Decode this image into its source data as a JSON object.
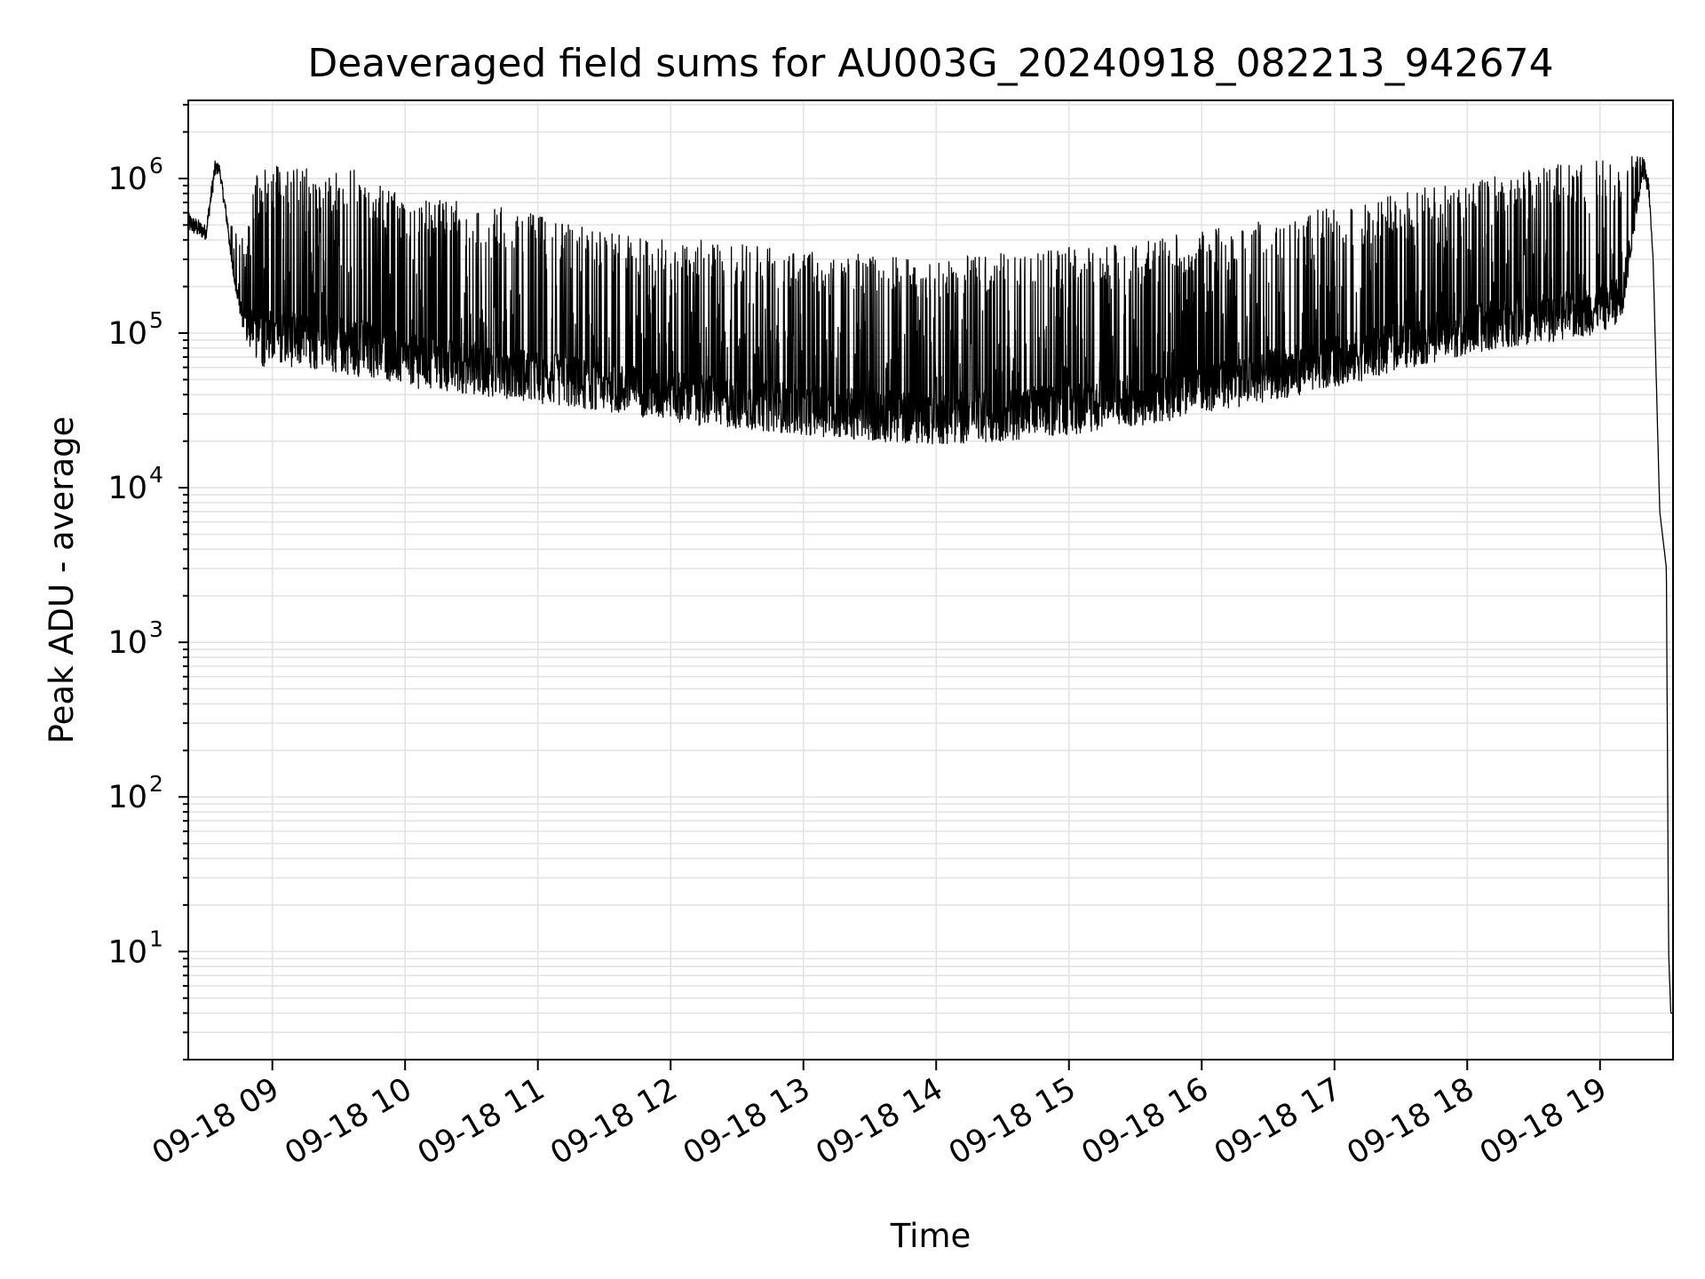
{
  "chart_data": {
    "type": "line",
    "title": "Deaveraged field sums for AU003G_20240918_082213_942674",
    "xlabel": "Time",
    "ylabel": "Peak ADU - average",
    "yscale": "log",
    "xlim": [
      "2024-09-18 08:22",
      "2024-09-18 19:33"
    ],
    "ylim": [
      2,
      3200000
    ],
    "grid": "both (major and minor)",
    "x_ticks": [
      {
        "t": "2024-09-18 09:00",
        "label": "09-18 09"
      },
      {
        "t": "2024-09-18 10:00",
        "label": "09-18 10"
      },
      {
        "t": "2024-09-18 11:00",
        "label": "09-18 11"
      },
      {
        "t": "2024-09-18 12:00",
        "label": "09-18 12"
      },
      {
        "t": "2024-09-18 13:00",
        "label": "09-18 13"
      },
      {
        "t": "2024-09-18 14:00",
        "label": "09-18 14"
      },
      {
        "t": "2024-09-18 15:00",
        "label": "09-18 15"
      },
      {
        "t": "2024-09-18 16:00",
        "label": "09-18 16"
      },
      {
        "t": "2024-09-18 17:00",
        "label": "09-18 17"
      },
      {
        "t": "2024-09-18 18:00",
        "label": "09-18 18"
      },
      {
        "t": "2024-09-18 19:00",
        "label": "09-18 19"
      }
    ],
    "y_ticks": [
      {
        "value": 10,
        "base": "10",
        "exp": "1"
      },
      {
        "value": 100,
        "base": "10",
        "exp": "2"
      },
      {
        "value": 1000,
        "base": "10",
        "exp": "3"
      },
      {
        "value": 10000,
        "base": "10",
        "exp": "4"
      },
      {
        "value": 100000,
        "base": "10",
        "exp": "5"
      },
      {
        "value": 1000000,
        "base": "10",
        "exp": "6"
      }
    ],
    "series_color": "#000000",
    "series": [
      {
        "x": [
          "2024-09-18 08:22",
          "2024-09-18 08:26",
          "2024-09-18 08:30",
          "2024-09-18 08:34",
          "2024-09-18 08:36",
          "2024-09-18 08:40",
          "2024-09-18 08:44",
          "2024-09-18 08:48",
          "2024-09-18 08:52",
          "2024-09-18 08:56",
          "2024-09-18 09:00",
          "2024-09-18 09:10",
          "2024-09-18 09:20",
          "2024-09-18 09:30",
          "2024-09-18 09:40",
          "2024-09-18 09:50",
          "2024-09-18 10:00",
          "2024-09-18 10:15",
          "2024-09-18 10:30",
          "2024-09-18 10:45",
          "2024-09-18 11:00",
          "2024-09-18 11:15",
          "2024-09-18 11:30",
          "2024-09-18 11:45",
          "2024-09-18 12:00",
          "2024-09-18 12:15",
          "2024-09-18 12:30",
          "2024-09-18 12:45",
          "2024-09-18 13:00",
          "2024-09-18 13:15",
          "2024-09-18 13:30",
          "2024-09-18 13:45",
          "2024-09-18 14:00",
          "2024-09-18 14:15",
          "2024-09-18 14:30",
          "2024-09-18 14:45",
          "2024-09-18 15:00",
          "2024-09-18 15:15",
          "2024-09-18 15:30",
          "2024-09-18 15:45",
          "2024-09-18 16:00",
          "2024-09-18 16:15",
          "2024-09-18 16:30",
          "2024-09-18 16:45",
          "2024-09-18 17:00",
          "2024-09-18 17:15",
          "2024-09-18 17:30",
          "2024-09-18 17:45",
          "2024-09-18 18:00",
          "2024-09-18 18:15",
          "2024-09-18 18:30",
          "2024-09-18 18:45",
          "2024-09-18 19:00",
          "2024-09-18 19:10",
          "2024-09-18 19:15",
          "2024-09-18 19:19",
          "2024-09-18 19:22",
          "2024-09-18 19:24",
          "2024-09-18 19:27",
          "2024-09-18 19:29",
          "2024-09-18 19:30",
          "2024-09-18 19:31",
          "2024-09-18 19:32",
          "2024-09-18 19:33"
        ],
        "y_upper": [
          600000,
          550000,
          500000,
          1300000,
          1250000,
          550000,
          450000,
          400000,
          1000000,
          1200000,
          1250000,
          1150000,
          1200000,
          1150000,
          1200000,
          900000,
          750000,
          750000,
          720000,
          650000,
          580000,
          520000,
          450000,
          420000,
          410000,
          400000,
          380000,
          360000,
          340000,
          330000,
          320000,
          310000,
          300000,
          320000,
          330000,
          340000,
          360000,
          380000,
          400000,
          430000,
          460000,
          500000,
          550000,
          600000,
          650000,
          720000,
          800000,
          900000,
          1000000,
          1100000,
          1200000,
          1250000,
          1300000,
          1350000,
          1400000,
          1500000,
          1000000,
          300000,
          7000,
          4000,
          3000,
          10,
          4,
          4
        ],
        "y_lower": [
          450000,
          420000,
          400000,
          1000000,
          1100000,
          420000,
          150000,
          90000,
          70000,
          60000,
          62000,
          60000,
          58000,
          55000,
          52000,
          50000,
          45000,
          42000,
          40000,
          38000,
          35000,
          33000,
          31000,
          29000,
          27000,
          25000,
          24000,
          23000,
          22000,
          21000,
          20000,
          19500,
          19000,
          19500,
          20000,
          21000,
          22000,
          23000,
          25000,
          27000,
          30000,
          33000,
          36000,
          40000,
          45000,
          50000,
          58000,
          65000,
          72000,
          80000,
          85000,
          90000,
          100000,
          120000,
          400000,
          1000000,
          800000,
          300000,
          7000,
          4000,
          3000,
          10,
          4,
          4
        ]
      }
    ]
  }
}
